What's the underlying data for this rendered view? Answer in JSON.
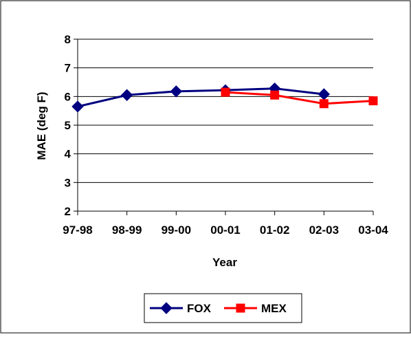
{
  "chart_data": {
    "type": "line",
    "title": "",
    "xlabel": "Year",
    "ylabel": "MAE (deg F)",
    "categories": [
      "97-98",
      "98-99",
      "99-00",
      "00-01",
      "01-02",
      "02-03",
      "03-04"
    ],
    "ylim": [
      2,
      8
    ],
    "yticks": [
      2,
      3,
      4,
      5,
      6,
      7,
      8
    ],
    "grid": true,
    "legend": "bottom",
    "series": [
      {
        "name": "FOX",
        "color": "#000080",
        "marker": "diamond",
        "values": [
          5.65,
          6.05,
          6.18,
          6.22,
          6.28,
          6.08,
          null
        ]
      },
      {
        "name": "MEX",
        "color": "#ff0000",
        "marker": "square",
        "values": [
          null,
          null,
          null,
          6.15,
          6.05,
          5.75,
          5.85
        ]
      }
    ]
  }
}
